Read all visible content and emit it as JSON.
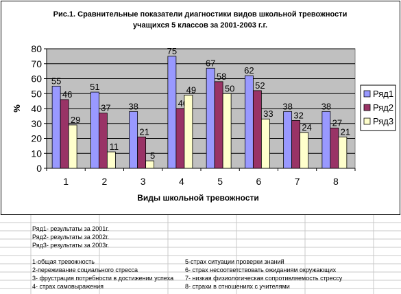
{
  "chart_data": {
    "type": "bar",
    "title_line1": "Рис.1. Сравнительные показатели диагностики видов школьной тревожности",
    "title_line2": "учащихся 5 классов за 2001-2003 г.г.",
    "xlabel": "Виды школьной тревожности",
    "ylabel": "%",
    "ylim": [
      0,
      80
    ],
    "yticks": [
      0,
      10,
      20,
      30,
      40,
      50,
      60,
      70,
      80
    ],
    "categories": [
      "1",
      "2",
      "3",
      "4",
      "5",
      "6",
      "7",
      "8"
    ],
    "grid": true,
    "legend_position": "right",
    "series": [
      {
        "name": "Ряд1",
        "color": "#9999ff",
        "values": [
          55,
          51,
          38,
          75,
          67,
          62,
          38,
          38
        ]
      },
      {
        "name": "Ряд2",
        "color": "#993366",
        "values": [
          46,
          37,
          21,
          40,
          58,
          52,
          32,
          27
        ]
      },
      {
        "name": "Ряд3",
        "color": "#ffffcc",
        "values": [
          29,
          11,
          5,
          49,
          50,
          33,
          24,
          21
        ]
      }
    ],
    "plot_background": "#c0c0c0"
  },
  "notes": {
    "series_legend": [
      "Ряд1- результаты за 2001г.",
      "Ряд2- результаты за 2002г.",
      "Ряд3- результаты за 2003г."
    ],
    "types_left": [
      "1-общая тревожность",
      "2-переживание социального стресса",
      "3- фрустрация потребности в достижении успеха",
      "4- страх самовыражения"
    ],
    "types_right": [
      "5-страх ситуации проверки знаний",
      "6- страх несоответствовать ожиданиям окружающих",
      "7- низкая физиологическая сопротивляемость стрессу",
      "8- страхи в отношениях с учителями"
    ]
  }
}
